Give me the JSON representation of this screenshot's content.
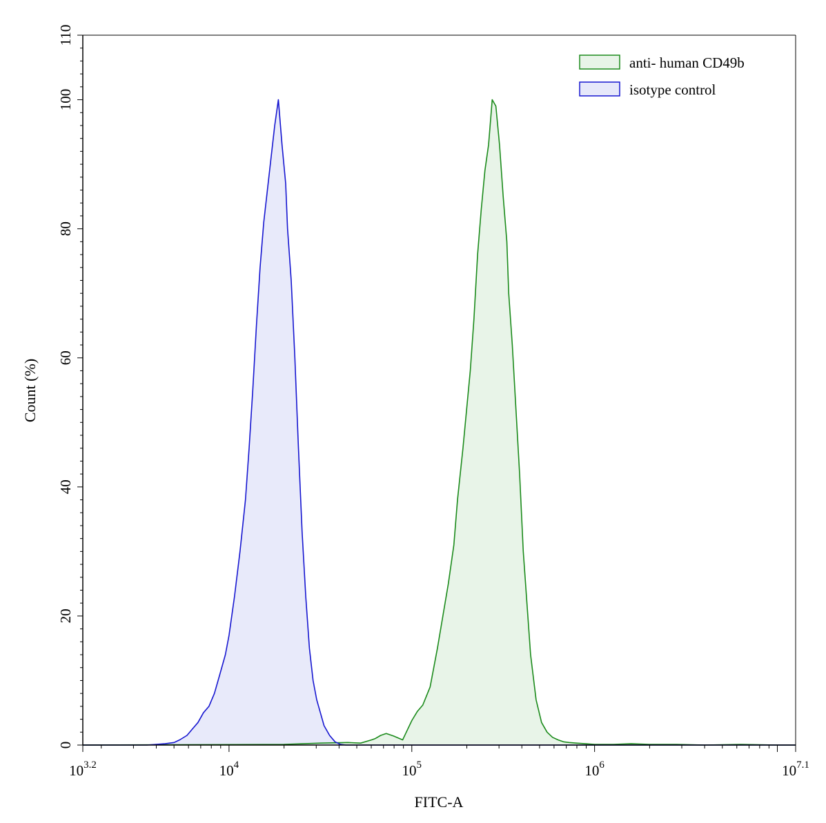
{
  "chart_data": {
    "type": "area",
    "title": "",
    "xlabel": "FITC-A",
    "ylabel": "Count  (%)",
    "x_scale": "log10",
    "xlim_log10": [
      3.2,
      7.1
    ],
    "ylim": [
      0,
      110
    ],
    "x_ticks": [
      {
        "base": "10",
        "exp": "3.2",
        "value_log10": 3.2
      },
      {
        "base": "10",
        "exp": "4",
        "value_log10": 4
      },
      {
        "base": "10",
        "exp": "5",
        "value_log10": 5
      },
      {
        "base": "10",
        "exp": "6",
        "value_log10": 6
      },
      {
        "base": "10",
        "exp": "7.1",
        "value_log10": 7.1
      }
    ],
    "y_ticks": [
      "0",
      "20",
      "40",
      "60",
      "80",
      "100",
      "110"
    ],
    "grid": false,
    "legend_position": "top-right",
    "series": [
      {
        "name": "anti- human CD49b",
        "color": "#1a8a1a",
        "fill": "#e8f4e8",
        "x_log10": [
          3.2,
          4.3,
          4.5,
          4.65,
          4.72,
          4.78,
          4.8,
          4.83,
          4.86,
          4.9,
          4.95,
          4.97,
          5.0,
          5.03,
          5.06,
          5.1,
          5.14,
          5.17,
          5.2,
          5.23,
          5.25,
          5.28,
          5.3,
          5.32,
          5.34,
          5.36,
          5.38,
          5.4,
          5.42,
          5.44,
          5.46,
          5.48,
          5.5,
          5.52,
          5.53,
          5.55,
          5.57,
          5.59,
          5.61,
          5.63,
          5.65,
          5.68,
          5.71,
          5.74,
          5.77,
          5.8,
          5.83,
          5.86,
          5.9,
          5.95,
          6.0,
          6.1,
          6.2,
          6.3,
          6.45,
          6.6,
          6.8,
          7.0,
          7.1
        ],
        "y": [
          0,
          0.1,
          0.3,
          0.4,
          0.3,
          0.8,
          1,
          1.5,
          1.8,
          1.4,
          0.8,
          2,
          3.8,
          5.2,
          6.2,
          9,
          15,
          20,
          25,
          31,
          38,
          46,
          52,
          58,
          66,
          76,
          83,
          89,
          93,
          100,
          99,
          93,
          85,
          78,
          70,
          62,
          52,
          42,
          30,
          22,
          14,
          7,
          3.5,
          2,
          1.2,
          0.8,
          0.5,
          0.4,
          0.3,
          0.2,
          0.1,
          0.1,
          0.2,
          0.1,
          0.1,
          0,
          0.1,
          0,
          0
        ]
      },
      {
        "name": "isotype control",
        "color": "#1515d0",
        "fill": "#e6e8fa",
        "x_log10": [
          3.2,
          3.55,
          3.65,
          3.7,
          3.73,
          3.77,
          3.8,
          3.83,
          3.86,
          3.89,
          3.92,
          3.95,
          3.98,
          4.0,
          4.03,
          4.06,
          4.09,
          4.11,
          4.13,
          4.15,
          4.17,
          4.19,
          4.21,
          4.23,
          4.25,
          4.27,
          4.29,
          4.31,
          4.32,
          4.34,
          4.36,
          4.38,
          4.4,
          4.42,
          4.44,
          4.46,
          4.48,
          4.5,
          4.52,
          4.55,
          4.58,
          4.61,
          4.64,
          4.67,
          4.7,
          4.75,
          4.8,
          4.9,
          5.0,
          5.1,
          5.2,
          5.4,
          5.6,
          5.9,
          6.2,
          6.6,
          7.1
        ],
        "y": [
          0,
          0,
          0.2,
          0.4,
          0.8,
          1.5,
          2.5,
          3.5,
          5,
          6,
          8,
          11,
          14,
          17,
          23,
          30,
          38,
          46,
          55,
          65,
          74,
          81,
          86,
          91,
          96,
          100,
          93,
          87,
          80,
          72,
          60,
          46,
          33,
          23,
          15,
          10,
          7,
          5,
          3,
          1.5,
          0.5,
          0.1,
          0,
          0,
          0,
          0,
          0,
          0,
          0,
          0,
          0,
          0,
          0,
          0,
          0,
          0,
          0
        ]
      }
    ]
  }
}
